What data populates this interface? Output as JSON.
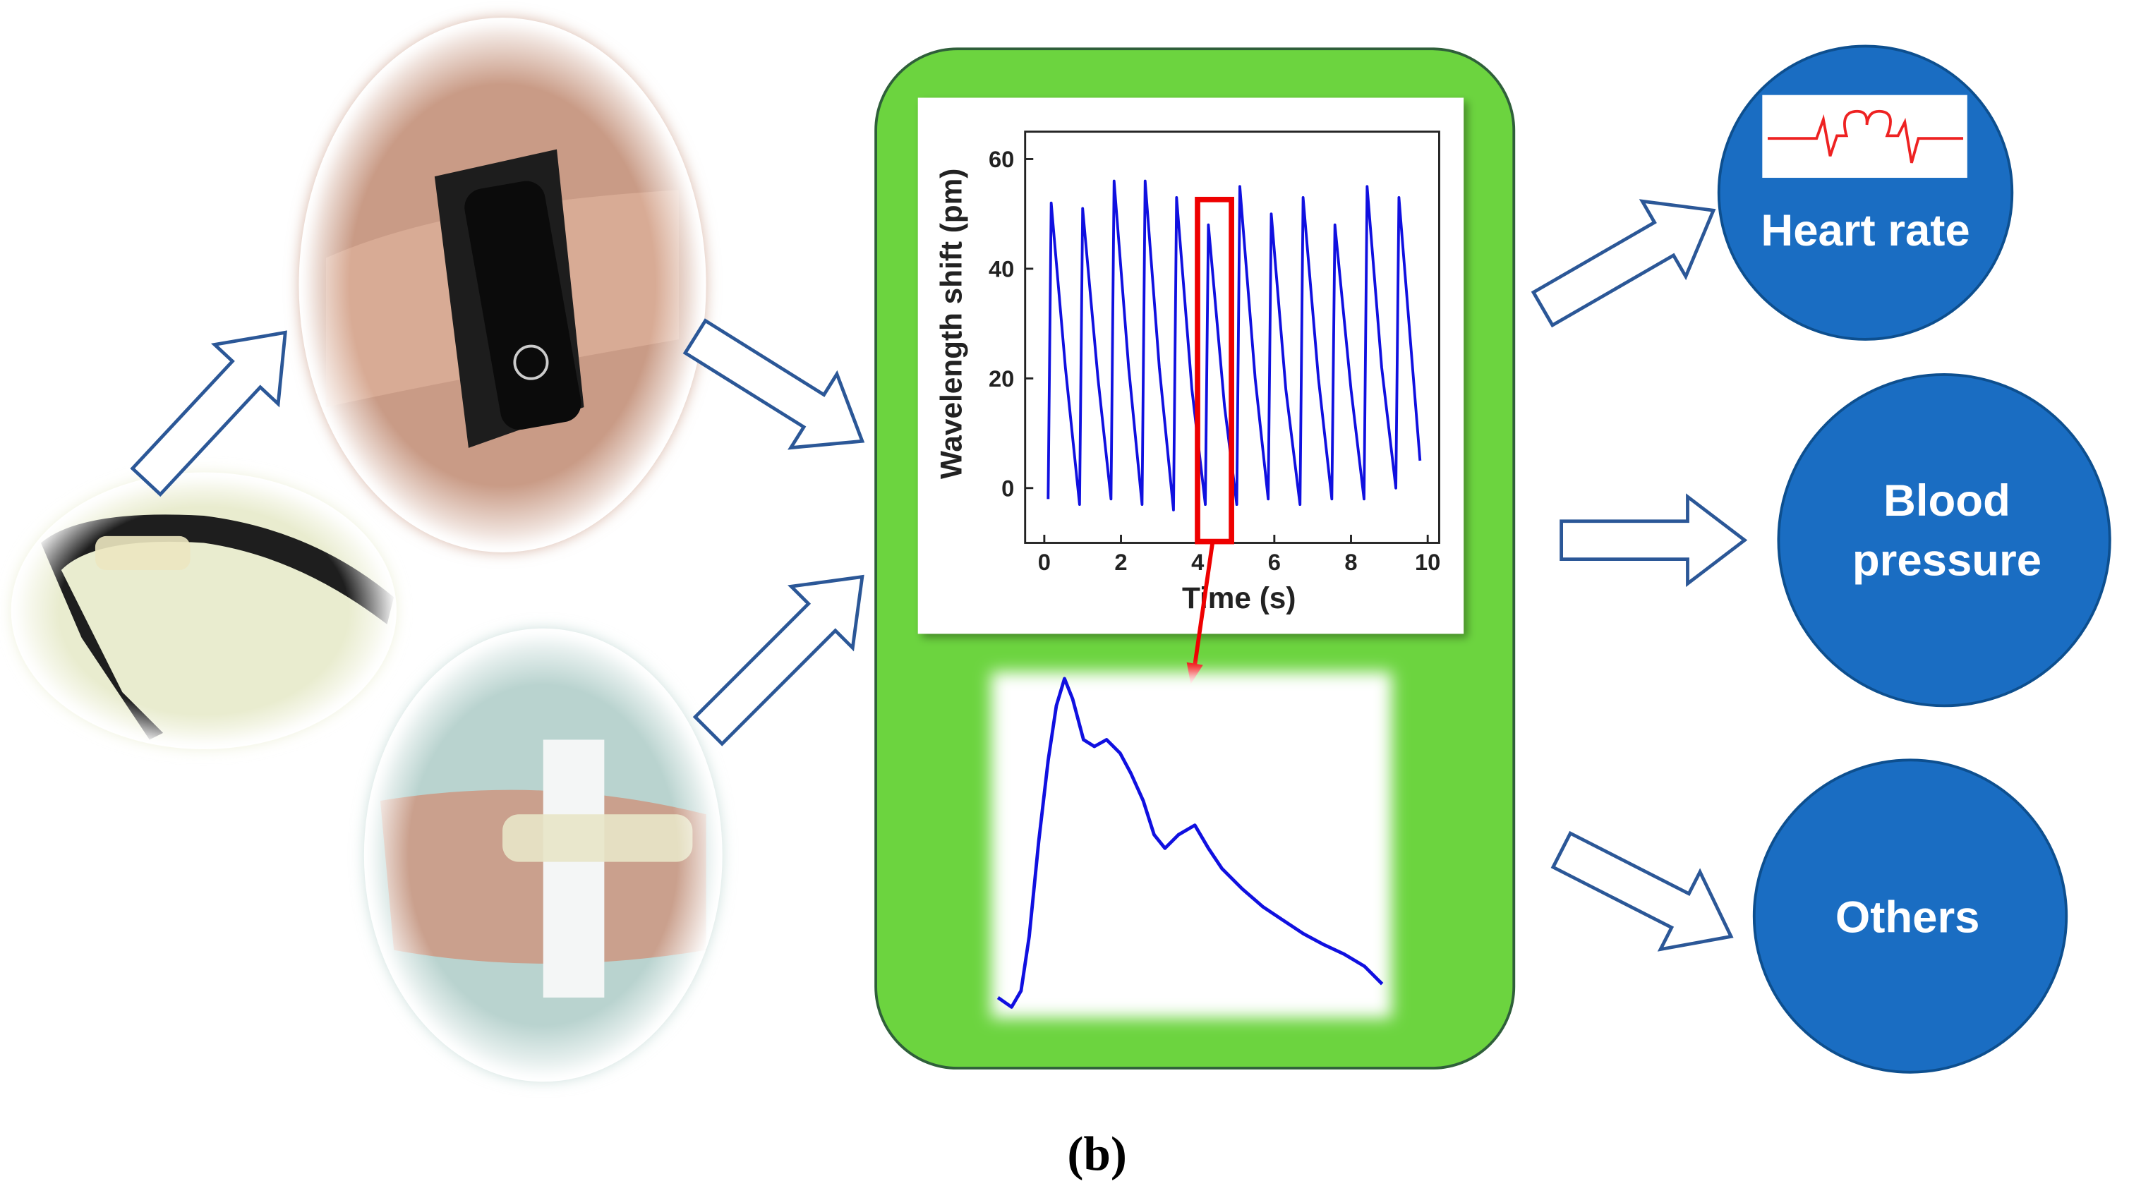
{
  "panel_label": "(b)",
  "outputs": [
    "Heart rate",
    "Blood pressure",
    "Others"
  ],
  "chart_data": {
    "type": "line",
    "x_label": "Time (s)",
    "y_label": "Wavelength shift (pm)",
    "xlim": [
      -0.5,
      10.3
    ],
    "ylim": [
      -10,
      65
    ],
    "xticks": [
      0,
      2,
      4,
      6,
      8,
      10
    ],
    "yticks": [
      0,
      20,
      40,
      60
    ],
    "x": [
      0.1,
      0.18,
      0.55,
      0.92,
      1.0,
      1.4,
      1.74,
      1.82,
      2.2,
      2.55,
      2.63,
      3.0,
      3.37,
      3.45,
      3.85,
      4.2,
      4.28,
      4.7,
      5.02,
      5.1,
      5.5,
      5.84,
      5.92,
      6.3,
      6.67,
      6.75,
      7.15,
      7.5,
      7.58,
      8.0,
      8.34,
      8.42,
      8.8,
      9.17,
      9.25,
      9.8
    ],
    "series": [
      {
        "color": "#1010e0",
        "values": [
          -2,
          52,
          22,
          -3,
          51,
          20,
          -2,
          56,
          22,
          -3,
          56,
          22,
          -4,
          53,
          18,
          -3,
          48,
          15,
          -3,
          55,
          20,
          -2,
          50,
          18,
          -3,
          53,
          20,
          -2,
          48,
          18,
          -2,
          55,
          22,
          0,
          53,
          5
        ]
      }
    ]
  }
}
